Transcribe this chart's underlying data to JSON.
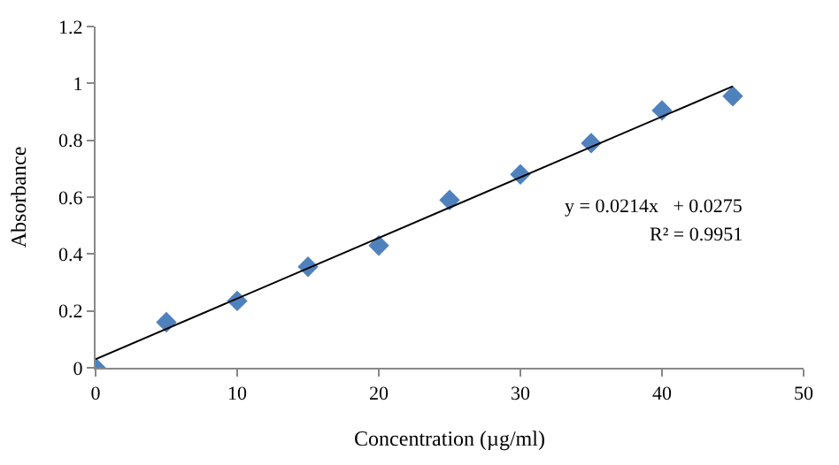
{
  "chart_data": {
    "type": "scatter",
    "xlabel": "Concentration (µg/ml)",
    "ylabel": "Absorbance",
    "x": [
      0,
      5,
      10,
      15,
      20,
      25,
      30,
      35,
      40,
      45
    ],
    "series": [
      {
        "color": "#4f81bd",
        "marker": "diamond",
        "values": [
          0,
          0.16,
          0.235,
          0.355,
          0.43,
          0.59,
          0.68,
          0.79,
          0.905,
          0.955
        ]
      },
      {
        "type": "line",
        "color": "#000000",
        "marker": "none",
        "x": [
          0,
          45
        ],
        "values": [
          0.03,
          0.99
        ]
      }
    ],
    "annotations": [
      "y = 0.0214x   + 0.0275",
      "R² = 0.9951"
    ],
    "xlim": [
      0,
      50
    ],
    "xticks": [
      0,
      10,
      20,
      30,
      40,
      50
    ],
    "ylim": [
      0,
      1.2
    ],
    "yticks": [
      0,
      0.2,
      0.4,
      0.6,
      0.8,
      1,
      1.2
    ]
  }
}
